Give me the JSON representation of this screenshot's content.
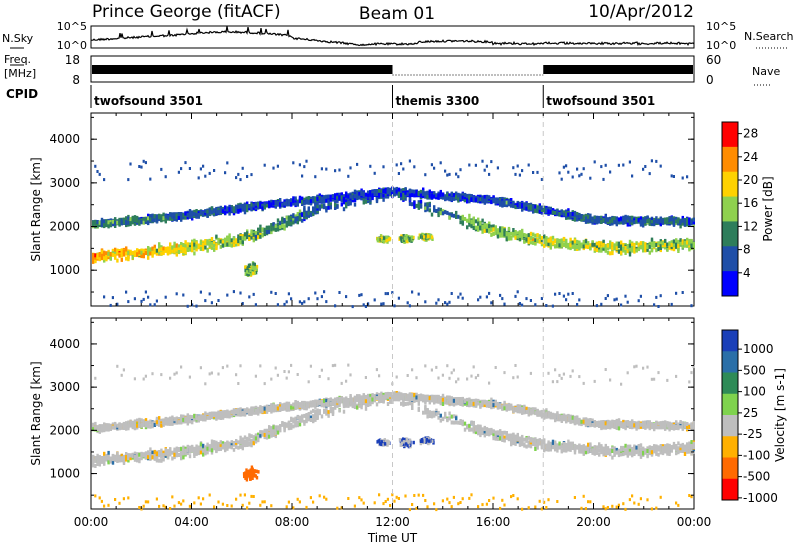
{
  "header": {
    "station": "Prince George (fitACF)",
    "beam": "Beam 01",
    "date": "10/Apr/2012"
  },
  "strip": {
    "nsky_label": "N.Sky",
    "nsky_left_top": "10^5",
    "nsky_left_bottom": "10^0",
    "nsky_right_top": "10^5",
    "nsky_right_bottom": "10^0",
    "nsearch_label": "N.Search",
    "freq_label_1": "Freq.",
    "freq_label_2": "[MHz]",
    "freq_top": "18",
    "freq_bottom": "8",
    "nave_top": "60",
    "nave_bottom": "0",
    "nave_label": "Nave",
    "cpid_label": "CPID"
  },
  "cpid_segments": [
    {
      "name": "twofsound 3501",
      "start_hour": 0
    },
    {
      "name": "themis 3300",
      "start_hour": 12
    },
    {
      "name": "twofsound 3501",
      "start_hour": 18
    }
  ],
  "chart_data": [
    {
      "type": "heatmap",
      "title": "",
      "xlabel": "",
      "ylabel": "Slant Range [km]",
      "xlim": [
        0,
        24
      ],
      "ylim": [
        180,
        4600
      ],
      "yticks": [
        1000,
        2000,
        3000,
        4000
      ],
      "colorbar_label": "Power [dB]",
      "colorbar_ticks": [
        "4",
        "8",
        "12",
        "16",
        "20",
        "24",
        "28"
      ],
      "colorbar_range": [
        0,
        30
      ],
      "colors": [
        "#0000ff",
        "#1f4fa8",
        "#2e7d5b",
        "#8fd14f",
        "#ffd200",
        "#ff8c00",
        "#ff0000"
      ],
      "bands": [
        {
          "name": "main",
          "points": [
            [
              0,
              1300,
              22
            ],
            [
              3,
              1450,
              18
            ],
            [
              6,
              1700,
              14
            ],
            [
              9,
              2400,
              8
            ],
            [
              12,
              2750,
              6
            ],
            [
              14,
              2300,
              10
            ],
            [
              16,
              1900,
              14
            ],
            [
              18,
              1650,
              16
            ],
            [
              21,
              1500,
              16
            ],
            [
              24,
              1600,
              14
            ]
          ]
        },
        {
          "name": "upper",
          "points": [
            [
              0,
              2050,
              10
            ],
            [
              3,
              2200,
              8
            ],
            [
              7,
              2500,
              6
            ],
            [
              12,
              2800,
              5
            ],
            [
              16,
              2600,
              6
            ],
            [
              20,
              2150,
              8
            ],
            [
              24,
              2100,
              8
            ]
          ]
        }
      ]
    },
    {
      "type": "heatmap",
      "title": "",
      "xlabel": "Time UT",
      "ylabel": "Slant Range [km]",
      "xlim": [
        0,
        24
      ],
      "ylim": [
        180,
        4600
      ],
      "xticks": [
        "00:00",
        "04:00",
        "08:00",
        "12:00",
        "16:00",
        "20:00",
        "00:00"
      ],
      "yticks": [
        1000,
        2000,
        3000,
        4000
      ],
      "colorbar_label": "Velocity [m s-1]",
      "colorbar_ticks": [
        "1000",
        "500",
        "100",
        "25",
        "-25",
        "-100",
        "-500",
        "-1000"
      ],
      "colors": [
        "#1a3fb8",
        "#2a6fa8",
        "#2e8b57",
        "#7fd34e",
        "#bebebe",
        "#ffb000",
        "#ff6a00",
        "#ff0000"
      ]
    }
  ]
}
